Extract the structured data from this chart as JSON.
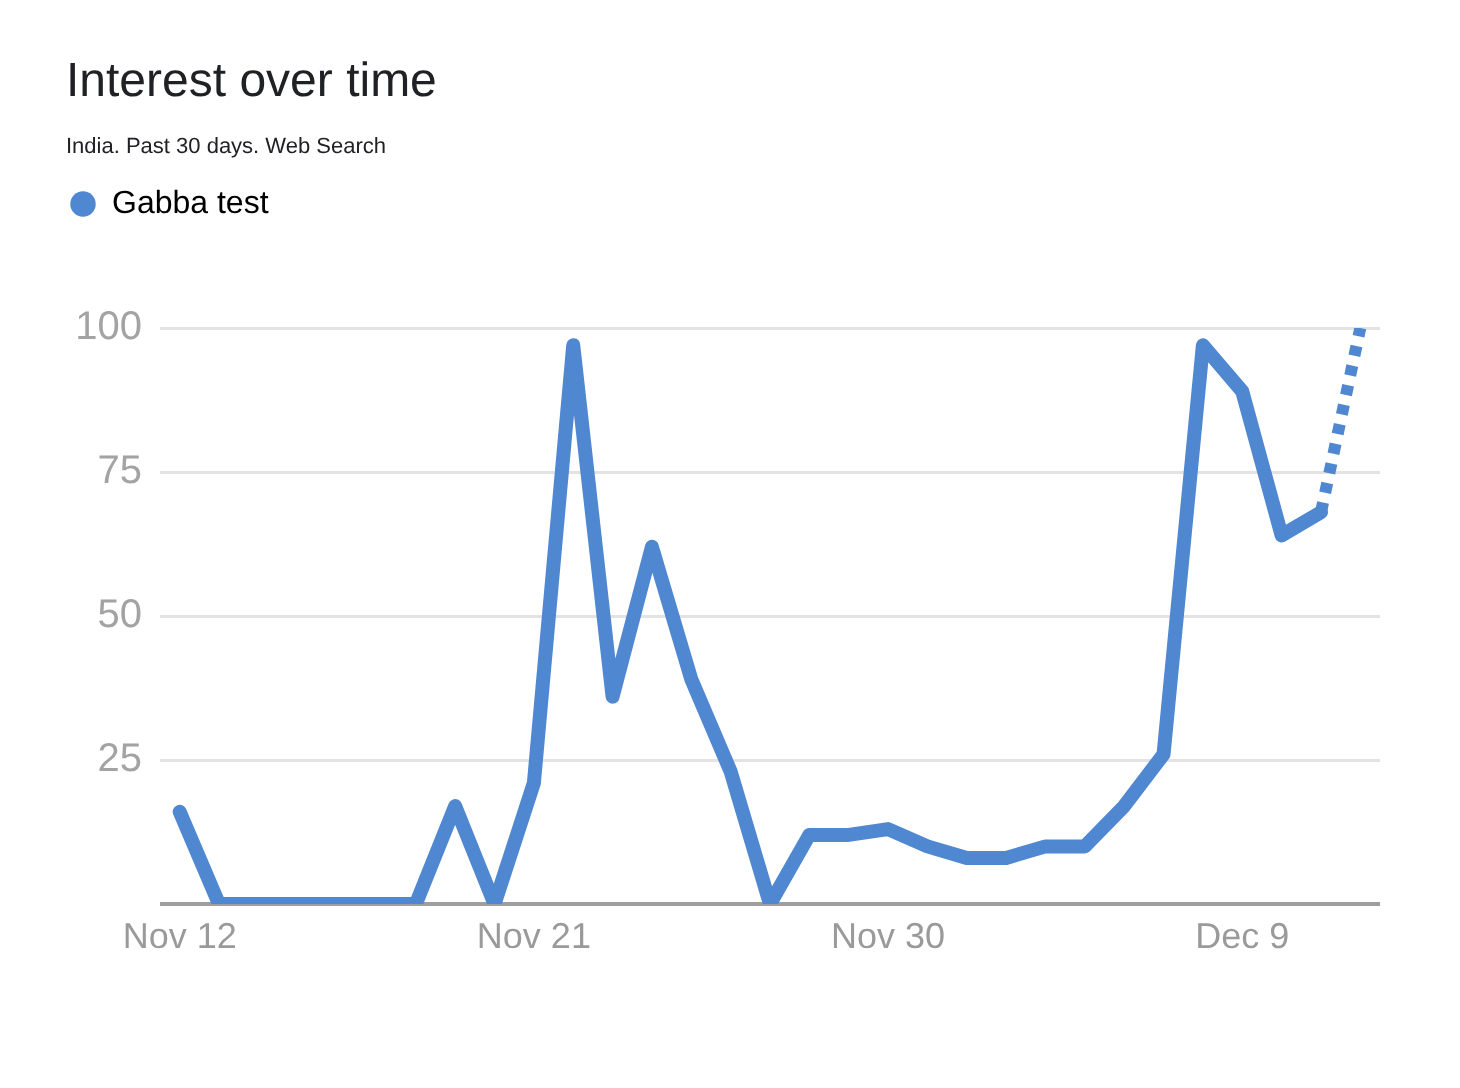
{
  "chart_data": {
    "type": "line",
    "title": "Interest over time",
    "subtitle": "India. Past 30 days. Web Search",
    "categories": [
      "Nov 12",
      null,
      null,
      null,
      null,
      null,
      null,
      null,
      null,
      "Nov 21",
      null,
      null,
      null,
      null,
      null,
      null,
      null,
      null,
      "Nov 30",
      null,
      null,
      null,
      null,
      null,
      null,
      null,
      null,
      "Dec 9",
      null,
      null,
      null
    ],
    "series": [
      {
        "name": "Gabba test",
        "color": "#4f87d0",
        "line_style": "solid",
        "values": [
          16,
          0,
          0,
          0,
          0,
          0,
          0,
          17,
          0,
          21,
          97,
          36,
          62,
          39,
          23,
          0,
          12,
          12,
          13,
          10,
          8,
          8,
          10,
          10,
          17,
          26,
          97,
          89,
          64,
          68,
          null
        ]
      },
      {
        "color": "#4f87d0",
        "line_style": "dotted",
        "values": [
          null,
          null,
          null,
          null,
          null,
          null,
          null,
          null,
          null,
          null,
          null,
          null,
          null,
          null,
          null,
          null,
          null,
          null,
          null,
          null,
          null,
          null,
          null,
          null,
          null,
          null,
          null,
          null,
          null,
          68,
          100
        ]
      }
    ],
    "ylim": [
      0,
      100
    ],
    "yticks": [
      {
        "value": 0,
        "label": null
      },
      25,
      50,
      75,
      100
    ],
    "grid": "y",
    "legend": "top left",
    "marker": "none"
  }
}
